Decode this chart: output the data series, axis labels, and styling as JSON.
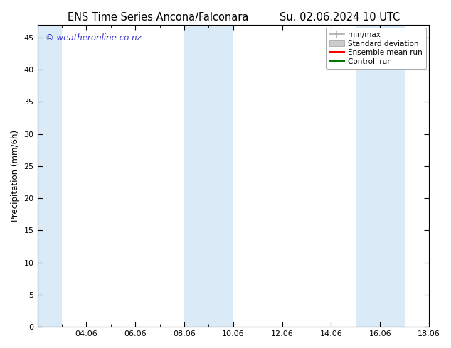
{
  "title_left": "ENS Time Series Ancona/Falconara",
  "title_right": "Su. 02.06.2024 10 UTC",
  "ylabel": "Precipitation (mm/6h)",
  "watermark": "© weatheronline.co.nz",
  "xlim": [
    0,
    16
  ],
  "ylim": [
    0,
    47
  ],
  "yticks": [
    0,
    5,
    10,
    15,
    20,
    25,
    30,
    35,
    40,
    45
  ],
  "xtick_labels": [
    "04.06",
    "06.06",
    "08.06",
    "10.06",
    "12.06",
    "14.06",
    "16.06",
    "18.06"
  ],
  "xtick_positions": [
    2,
    4,
    6,
    8,
    10,
    12,
    14,
    16
  ],
  "shaded_bands": [
    {
      "x_start": 0.0,
      "x_end": 1.0,
      "color": "#daeaf7"
    },
    {
      "x_start": 6.0,
      "x_end": 7.0,
      "color": "#daeaf7"
    },
    {
      "x_start": 7.0,
      "x_end": 8.0,
      "color": "#daeaf7"
    },
    {
      "x_start": 13.0,
      "x_end": 14.0,
      "color": "#daeaf7"
    },
    {
      "x_start": 14.0,
      "x_end": 15.0,
      "color": "#daeaf7"
    }
  ],
  "background_color": "#ffffff",
  "plot_bg_color": "#ffffff",
  "title_fontsize": 10.5,
  "watermark_color": "#3333cc",
  "watermark_fontsize": 8.5,
  "tick_fontsize": 8,
  "legend_fontsize": 7.5,
  "minmax_color": "#aaaaaa",
  "std_color": "#cccccc",
  "ensemble_color": "#ff0000",
  "control_color": "#007700"
}
